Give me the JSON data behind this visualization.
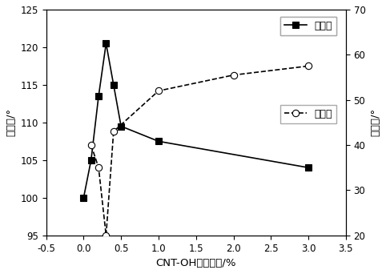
{
  "contact_x": [
    0.0,
    0.1,
    0.2,
    0.3,
    0.4,
    0.5,
    1.0,
    3.0
  ],
  "contact_y": [
    100.0,
    105.0,
    113.5,
    120.5,
    115.0,
    109.5,
    107.5,
    104.0
  ],
  "rolling_x": [
    0.1,
    0.2,
    0.3,
    0.4,
    1.0,
    2.0,
    3.0
  ],
  "rolling_y": [
    40.0,
    35.0,
    20.0,
    43.0,
    52.0,
    55.5,
    57.5
  ],
  "xlabel": "CNT-OH的添加量/%",
  "ylabel_left": "接触角/°",
  "ylabel_right": "滚动角/°",
  "legend_contact": "接触角",
  "legend_rolling": "滚动角",
  "xlim": [
    -0.5,
    3.5
  ],
  "ylim_left": [
    95,
    125
  ],
  "ylim_right": [
    20,
    70
  ],
  "xticks": [
    -0.5,
    0.0,
    0.5,
    1.0,
    1.5,
    2.0,
    2.5,
    3.0,
    3.5
  ],
  "xticklabels": [
    "-0.5",
    "0.0",
    "0.5",
    "1.0",
    "1.5",
    "2.0",
    "2.5",
    "3.0",
    "3.5"
  ],
  "yticks_left": [
    95,
    100,
    105,
    110,
    115,
    120,
    125
  ],
  "yticks_right": [
    20,
    30,
    40,
    50,
    60,
    70
  ]
}
